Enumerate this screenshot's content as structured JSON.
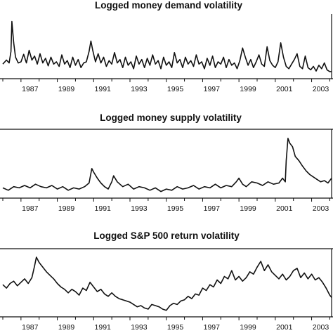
{
  "chart_data": [
    {
      "type": "line",
      "title": "Logged money demand volatility",
      "xlabel": "",
      "ylabel": "",
      "xlim": [
        1986.0,
        2004.1
      ],
      "x_ticks": [
        "1987",
        "1989",
        "1991",
        "1993",
        "1995",
        "1997",
        "1999",
        "2001",
        "2003"
      ],
      "y_ticks": [],
      "ylim": [
        0,
        1
      ],
      "series": [
        {
          "x": [
            1986.0,
            1986.2,
            1986.35,
            1986.45,
            1986.5,
            1986.6,
            1986.7,
            1986.85,
            1987.0,
            1987.15,
            1987.3,
            1987.45,
            1987.6,
            1987.75,
            1987.9,
            1988.05,
            1988.2,
            1988.35,
            1988.5,
            1988.65,
            1988.8,
            1988.95,
            1989.1,
            1989.25,
            1989.4,
            1989.55,
            1989.7,
            1989.85,
            1990.0,
            1990.15,
            1990.3,
            1990.45,
            1990.6,
            1990.75,
            1990.85,
            1990.95,
            1991.1,
            1991.25,
            1991.4,
            1991.55,
            1991.7,
            1991.85,
            1992.0,
            1992.15,
            1992.3,
            1992.45,
            1992.6,
            1992.75,
            1992.9,
            1993.05,
            1993.2,
            1993.35,
            1993.5,
            1993.65,
            1993.8,
            1993.95,
            1994.1,
            1994.25,
            1994.4,
            1994.55,
            1994.7,
            1994.85,
            1995.0,
            1995.15,
            1995.3,
            1995.45,
            1995.6,
            1995.75,
            1995.9,
            1996.05,
            1996.2,
            1996.35,
            1996.5,
            1996.65,
            1996.8,
            1996.95,
            1997.1,
            1997.25,
            1997.4,
            1997.55,
            1997.7,
            1997.85,
            1998.0,
            1998.15,
            1998.3,
            1998.45,
            1998.6,
            1998.75,
            1998.9,
            1999.05,
            1999.2,
            1999.35,
            1999.5,
            1999.65,
            1999.8,
            1999.95,
            2000.1,
            2000.25,
            2000.4,
            2000.55,
            2000.7,
            2000.85,
            2001.0,
            2001.15,
            2001.3,
            2001.45,
            2001.6,
            2001.75,
            2001.9,
            2002.05,
            2002.2,
            2002.35,
            2002.5,
            2002.65,
            2002.8,
            2002.95,
            2003.1,
            2003.25,
            2003.4,
            2003.55,
            2003.7,
            2003.85,
            2004.0,
            2004.1
          ],
          "y": [
            0.18,
            0.25,
            0.2,
            0.4,
            0.92,
            0.55,
            0.3,
            0.2,
            0.22,
            0.35,
            0.2,
            0.42,
            0.25,
            0.32,
            0.18,
            0.36,
            0.2,
            0.28,
            0.15,
            0.3,
            0.18,
            0.22,
            0.14,
            0.34,
            0.18,
            0.24,
            0.12,
            0.3,
            0.16,
            0.26,
            0.12,
            0.2,
            0.22,
            0.4,
            0.58,
            0.42,
            0.22,
            0.36,
            0.2,
            0.3,
            0.14,
            0.24,
            0.18,
            0.38,
            0.2,
            0.26,
            0.12,
            0.3,
            0.16,
            0.22,
            0.1,
            0.32,
            0.18,
            0.26,
            0.12,
            0.28,
            0.16,
            0.34,
            0.18,
            0.24,
            0.1,
            0.3,
            0.16,
            0.22,
            0.12,
            0.38,
            0.2,
            0.26,
            0.12,
            0.3,
            0.18,
            0.24,
            0.14,
            0.34,
            0.18,
            0.22,
            0.1,
            0.28,
            0.16,
            0.32,
            0.12,
            0.22,
            0.18,
            0.3,
            0.12,
            0.26,
            0.16,
            0.2,
            0.1,
            0.24,
            0.46,
            0.3,
            0.16,
            0.26,
            0.12,
            0.22,
            0.34,
            0.18,
            0.14,
            0.48,
            0.24,
            0.16,
            0.12,
            0.22,
            0.55,
            0.3,
            0.14,
            0.1,
            0.18,
            0.26,
            0.36,
            0.14,
            0.1,
            0.32,
            0.12,
            0.08,
            0.14,
            0.06,
            0.16,
            0.1,
            0.2,
            0.08,
            0.05,
            0.05
          ]
        }
      ]
    },
    {
      "type": "line",
      "title": "Logged money supply volatility",
      "xlabel": "",
      "ylabel": "",
      "xlim": [
        1986.0,
        2004.1
      ],
      "x_ticks": [
        "1987",
        "1989",
        "1991",
        "1993",
        "1995",
        "1997",
        "1999",
        "2001",
        "2003"
      ],
      "y_ticks": [],
      "ylim": [
        0,
        1
      ],
      "series": [
        {
          "x": [
            1986.0,
            1986.3,
            1986.6,
            1986.9,
            1987.2,
            1987.5,
            1987.8,
            1988.1,
            1988.4,
            1988.7,
            1989.0,
            1989.3,
            1989.6,
            1989.9,
            1990.2,
            1990.5,
            1990.75,
            1990.9,
            1991.0,
            1991.2,
            1991.4,
            1991.6,
            1991.8,
            1992.0,
            1992.1,
            1992.3,
            1992.6,
            1992.9,
            1993.2,
            1993.5,
            1993.8,
            1994.1,
            1994.4,
            1994.7,
            1995.0,
            1995.3,
            1995.6,
            1995.9,
            1996.2,
            1996.5,
            1996.8,
            1997.1,
            1997.4,
            1997.7,
            1998.0,
            1998.3,
            1998.6,
            1998.85,
            1999.0,
            1999.2,
            1999.4,
            1999.7,
            2000.0,
            2000.3,
            2000.6,
            2000.9,
            2001.2,
            2001.4,
            2001.55,
            2001.6,
            2001.7,
            2001.8,
            2001.95,
            2002.1,
            2002.3,
            2002.5,
            2002.7,
            2002.9,
            2003.1,
            2003.3,
            2003.5,
            2003.7,
            2003.9,
            2004.1
          ],
          "y": [
            0.1,
            0.06,
            0.12,
            0.1,
            0.14,
            0.1,
            0.16,
            0.12,
            0.1,
            0.14,
            0.08,
            0.12,
            0.06,
            0.1,
            0.08,
            0.12,
            0.18,
            0.42,
            0.36,
            0.26,
            0.18,
            0.12,
            0.08,
            0.2,
            0.3,
            0.2,
            0.12,
            0.16,
            0.08,
            0.12,
            0.1,
            0.06,
            0.1,
            0.04,
            0.08,
            0.06,
            0.12,
            0.08,
            0.1,
            0.14,
            0.08,
            0.12,
            0.1,
            0.16,
            0.1,
            0.14,
            0.12,
            0.2,
            0.26,
            0.16,
            0.12,
            0.2,
            0.18,
            0.14,
            0.2,
            0.16,
            0.18,
            0.26,
            0.2,
            0.55,
            0.92,
            0.84,
            0.78,
            0.62,
            0.55,
            0.46,
            0.38,
            0.32,
            0.28,
            0.24,
            0.2,
            0.22,
            0.18,
            0.26
          ]
        }
      ]
    },
    {
      "type": "line",
      "title": "Logged S&P 500 return volatility",
      "xlabel": "",
      "ylabel": "",
      "xlim": [
        1986.0,
        2004.1
      ],
      "x_ticks": [
        "1987",
        "1989",
        "1991",
        "1993",
        "1995",
        "1997",
        "1999",
        "2001",
        "2003"
      ],
      "y_ticks": [],
      "ylim": [
        0,
        1
      ],
      "series": [
        {
          "x": [
            1986.0,
            1986.2,
            1986.4,
            1986.6,
            1986.8,
            1987.0,
            1987.2,
            1987.4,
            1987.6,
            1987.75,
            1987.85,
            1988.0,
            1988.2,
            1988.4,
            1988.6,
            1988.8,
            1989.0,
            1989.2,
            1989.4,
            1989.6,
            1989.8,
            1990.0,
            1990.2,
            1990.4,
            1990.6,
            1990.8,
            1991.0,
            1991.2,
            1991.4,
            1991.6,
            1991.8,
            1992.0,
            1992.2,
            1992.4,
            1992.6,
            1992.8,
            1993.0,
            1993.2,
            1993.4,
            1993.6,
            1993.8,
            1994.0,
            1994.2,
            1994.4,
            1994.6,
            1994.8,
            1995.0,
            1995.2,
            1995.4,
            1995.6,
            1995.8,
            1996.0,
            1996.2,
            1996.4,
            1996.6,
            1996.8,
            1997.0,
            1997.2,
            1997.4,
            1997.6,
            1997.8,
            1998.0,
            1998.2,
            1998.4,
            1998.6,
            1998.8,
            1999.0,
            1999.2,
            1999.4,
            1999.6,
            1999.8,
            2000.0,
            2000.2,
            2000.4,
            2000.6,
            2000.8,
            2001.0,
            2001.2,
            2001.4,
            2001.6,
            2001.8,
            2002.0,
            2002.2,
            2002.4,
            2002.6,
            2002.8,
            2003.0,
            2003.2,
            2003.4,
            2003.6,
            2003.8,
            2004.0,
            2004.1
          ],
          "y": [
            0.48,
            0.42,
            0.5,
            0.54,
            0.46,
            0.52,
            0.58,
            0.5,
            0.6,
            0.8,
            0.95,
            0.86,
            0.78,
            0.7,
            0.64,
            0.58,
            0.5,
            0.44,
            0.4,
            0.34,
            0.4,
            0.36,
            0.3,
            0.42,
            0.38,
            0.52,
            0.44,
            0.36,
            0.4,
            0.32,
            0.28,
            0.34,
            0.28,
            0.24,
            0.22,
            0.2,
            0.18,
            0.14,
            0.1,
            0.12,
            0.08,
            0.06,
            0.14,
            0.12,
            0.1,
            0.06,
            0.04,
            0.12,
            0.16,
            0.14,
            0.2,
            0.22,
            0.28,
            0.24,
            0.32,
            0.3,
            0.42,
            0.38,
            0.48,
            0.44,
            0.56,
            0.5,
            0.62,
            0.58,
            0.72,
            0.56,
            0.62,
            0.54,
            0.6,
            0.7,
            0.66,
            0.78,
            0.88,
            0.72,
            0.82,
            0.7,
            0.64,
            0.58,
            0.66,
            0.56,
            0.62,
            0.72,
            0.76,
            0.6,
            0.68,
            0.58,
            0.66,
            0.56,
            0.6,
            0.52,
            0.42,
            0.3,
            0.26
          ]
        }
      ]
    }
  ]
}
